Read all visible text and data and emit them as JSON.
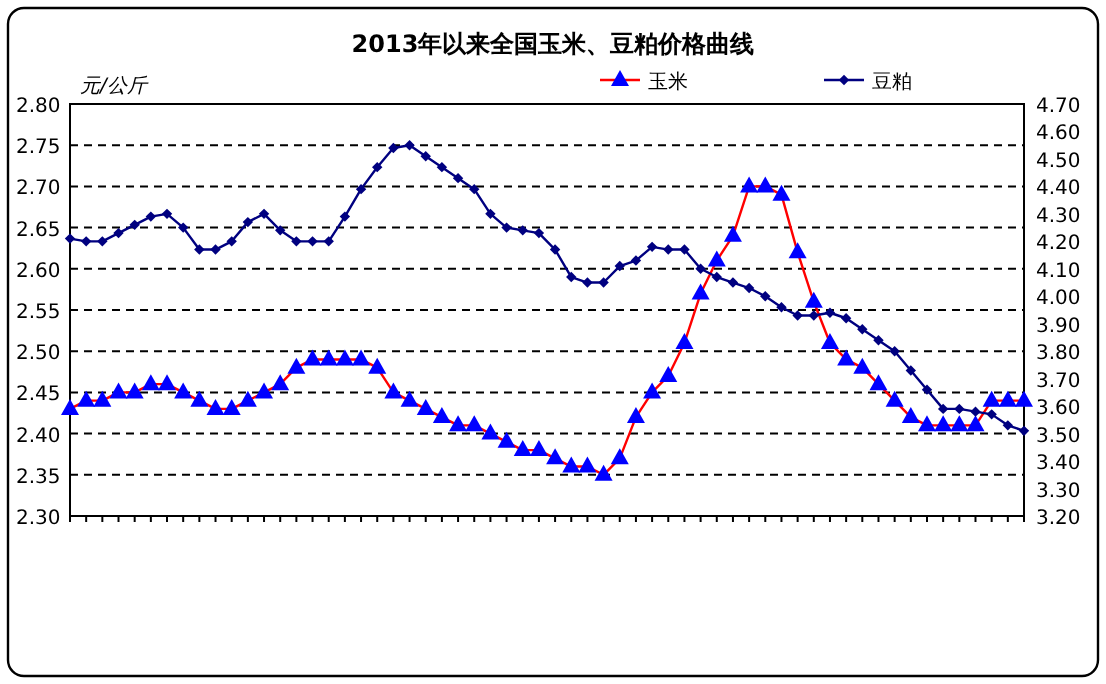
{
  "chart_data": {
    "type": "line",
    "title": "2013年以来全国玉米、豆粕价格曲线",
    "ylabel": "元/公斤",
    "categories": [
      null,
      null,
      null,
      null,
      null,
      null,
      null,
      null,
      null,
      null,
      null,
      null,
      null,
      null,
      null,
      null,
      null,
      null,
      null,
      null,
      null,
      null,
      null,
      null,
      null,
      null,
      null,
      null,
      null,
      null,
      null,
      null,
      null,
      null,
      null,
      null,
      null,
      null,
      null,
      null,
      null,
      null,
      null,
      null,
      null,
      null,
      null,
      null,
      null,
      null,
      null,
      null,
      null,
      null,
      null,
      null,
      null,
      null,
      null,
      null
    ],
    "series": [
      {
        "name": "玉米",
        "color": "#0000ff",
        "marker": "triangle",
        "values": [
          2.43,
          2.44,
          2.44,
          2.45,
          2.45,
          2.46,
          2.46,
          2.45,
          2.44,
          2.43,
          2.43,
          2.44,
          2.45,
          2.46,
          2.48,
          2.49,
          2.49,
          2.49,
          2.49,
          2.48,
          2.45,
          2.44,
          2.43,
          2.42,
          2.41,
          2.41,
          2.4,
          2.39,
          2.38,
          2.38,
          2.37,
          2.36,
          2.36,
          2.35,
          2.37,
          2.42,
          2.45,
          2.47,
          2.51,
          2.57,
          2.61,
          2.64,
          2.7,
          2.7,
          2.69,
          2.62,
          2.56,
          2.51,
          2.49,
          2.48,
          2.46,
          2.44,
          2.42,
          2.41,
          2.41,
          2.41,
          2.41,
          2.44,
          2.44,
          2.44
        ]
      },
      {
        "name": "豆粕",
        "color": "#000080",
        "marker": "diamond",
        "axis": "y2",
        "values": [
          4.21,
          4.2,
          4.2,
          4.23,
          4.26,
          4.29,
          4.3,
          4.25,
          4.17,
          4.17,
          4.2,
          4.27,
          4.3,
          4.24,
          4.2,
          4.2,
          4.2,
          4.29,
          4.39,
          4.47,
          4.54,
          4.55,
          4.51,
          4.47,
          4.43,
          4.39,
          4.3,
          4.25,
          4.24,
          4.23,
          4.17,
          4.07,
          4.05,
          4.05,
          4.11,
          4.13,
          4.18,
          4.17,
          4.17,
          4.1,
          4.07,
          4.05,
          4.03,
          4.0,
          3.96,
          3.93,
          3.93,
          3.94,
          3.92,
          3.88,
          3.84,
          3.8,
          3.73,
          3.66,
          3.59,
          3.59,
          3.58,
          3.57,
          3.53,
          3.51
        ]
      }
    ],
    "ylim": [
      2.3,
      2.8
    ],
    "yticks": [
      {
        "value": 2.3,
        "label": "2.30"
      },
      {
        "value": 2.35,
        "label": "2.35"
      },
      {
        "value": 2.4,
        "label": "2.40"
      },
      {
        "value": 2.45,
        "label": "2.45"
      },
      {
        "value": 2.5,
        "label": "2.50"
      },
      {
        "value": 2.55,
        "label": "2.55"
      },
      {
        "value": 2.6,
        "label": "2.60"
      },
      {
        "value": 2.65,
        "label": "2.65"
      },
      {
        "value": 2.7,
        "label": "2.70"
      },
      {
        "value": 2.75,
        "label": "2.75"
      },
      {
        "value": 2.8,
        "label": "2.80"
      }
    ],
    "y2lim": [
      3.2,
      4.7
    ],
    "y2ticks": [
      {
        "value": 3.2,
        "label": "3.20"
      },
      {
        "value": 3.3,
        "label": "3.30"
      },
      {
        "value": 3.4,
        "label": "3.40"
      },
      {
        "value": 3.5,
        "label": "3.50"
      },
      {
        "value": 3.6,
        "label": "3.60"
      },
      {
        "value": 3.7,
        "label": "3.70"
      },
      {
        "value": 3.8,
        "label": "3.80"
      },
      {
        "value": 3.9,
        "label": "3.90"
      },
      {
        "value": 4.0,
        "label": "4.00"
      },
      {
        "value": 4.1,
        "label": "4.10"
      },
      {
        "value": 4.2,
        "label": "4.20"
      },
      {
        "value": 4.3,
        "label": "4.30"
      },
      {
        "value": 4.4,
        "label": "4.40"
      },
      {
        "value": 4.5,
        "label": "4.50"
      },
      {
        "value": 4.6,
        "label": "4.60"
      },
      {
        "value": 4.7,
        "label": "4.70"
      }
    ],
    "grid": "y",
    "legend": "top"
  }
}
